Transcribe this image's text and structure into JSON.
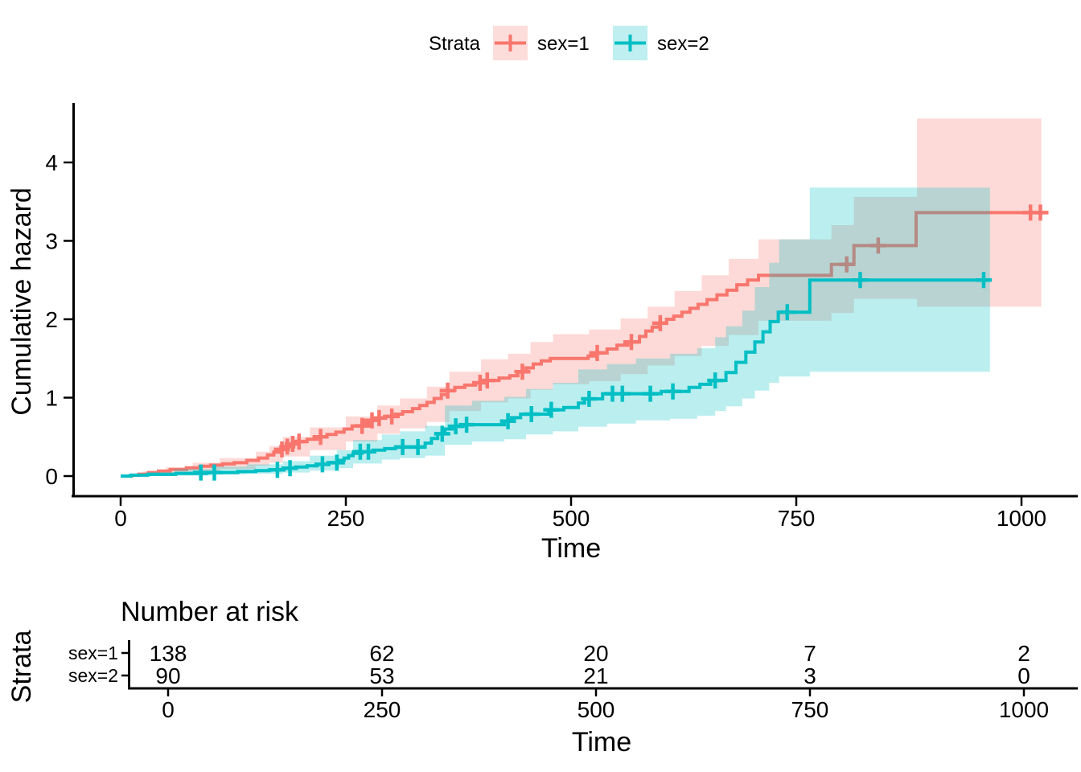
{
  "accent_colors": {
    "stratum1": "#F8766D",
    "stratum2": "#00BFC4",
    "axis": "#000000"
  },
  "legend": {
    "title": "Strata"
  },
  "chart_data": [
    {
      "type": "line",
      "subtype": "step-cumulative-hazard-with-confidence-bands",
      "title": "",
      "xlabel": "Time",
      "ylabel": "Cumulative hazard",
      "xticks": [
        0,
        250,
        500,
        750,
        1000
      ],
      "yticks": [
        0,
        1,
        2,
        3,
        4
      ],
      "xlim": [
        -55,
        1060
      ],
      "ylim": [
        0,
        4.6
      ],
      "grid": false,
      "legend_position": "top",
      "legend_title": "Strata",
      "series": [
        {
          "name": "sex=1",
          "color": "#F8766D",
          "end_time": 1022,
          "points": [
            [
              0,
              0
            ],
            [
              12,
              0.01
            ],
            [
              20,
              0.025
            ],
            [
              31,
              0.045
            ],
            [
              42,
              0.065
            ],
            [
              55,
              0.085
            ],
            [
              73,
              0.105
            ],
            [
              88,
              0.125
            ],
            [
              100,
              0.14
            ],
            [
              113,
              0.155
            ],
            [
              126,
              0.17
            ],
            [
              140,
              0.2
            ],
            [
              153,
              0.23
            ],
            [
              163,
              0.27
            ],
            [
              170,
              0.305
            ],
            [
              177,
              0.34
            ],
            [
              183,
              0.375
            ],
            [
              189,
              0.41
            ],
            [
              197,
              0.44
            ],
            [
              207,
              0.47
            ],
            [
              218,
              0.5
            ],
            [
              229,
              0.53
            ],
            [
              239,
              0.56
            ],
            [
              248,
              0.6
            ],
            [
              257,
              0.64
            ],
            [
              269,
              0.67
            ],
            [
              278,
              0.71
            ],
            [
              284,
              0.74
            ],
            [
              293,
              0.76
            ],
            [
              305,
              0.79
            ],
            [
              313,
              0.82
            ],
            [
              324,
              0.86
            ],
            [
              332,
              0.9
            ],
            [
              340,
              0.94
            ],
            [
              348,
              0.99
            ],
            [
              356,
              1.04
            ],
            [
              363,
              1.09
            ],
            [
              371,
              1.13
            ],
            [
              382,
              1.16
            ],
            [
              394,
              1.19
            ],
            [
              404,
              1.22
            ],
            [
              420,
              1.25
            ],
            [
              432,
              1.28
            ],
            [
              441,
              1.33
            ],
            [
              450,
              1.38
            ],
            [
              458,
              1.43
            ],
            [
              467,
              1.47
            ],
            [
              477,
              1.5
            ],
            [
              519,
              1.53
            ],
            [
              528,
              1.57
            ],
            [
              540,
              1.62
            ],
            [
              551,
              1.67
            ],
            [
              563,
              1.71
            ],
            [
              576,
              1.78
            ],
            [
              583,
              1.85
            ],
            [
              590,
              1.9
            ],
            [
              598,
              1.95
            ],
            [
              606,
              2.0
            ],
            [
              614,
              2.04
            ],
            [
              623,
              2.09
            ],
            [
              632,
              2.14
            ],
            [
              641,
              2.19
            ],
            [
              651,
              2.25
            ],
            [
              662,
              2.31
            ],
            [
              673,
              2.37
            ],
            [
              684,
              2.44
            ],
            [
              696,
              2.5
            ],
            [
              708,
              2.56
            ],
            [
              789,
              2.7
            ],
            [
              814,
              2.94
            ],
            [
              883,
              3.36
            ]
          ],
          "censors": [
            [
              179,
              0.34
            ],
            [
              185,
              0.375
            ],
            [
              191,
              0.41
            ],
            [
              198,
              0.44
            ],
            [
              222,
              0.5
            ],
            [
              268,
              0.64
            ],
            [
              279,
              0.71
            ],
            [
              287,
              0.74
            ],
            [
              301,
              0.76
            ],
            [
              363,
              1.09
            ],
            [
              399,
              1.19
            ],
            [
              407,
              1.22
            ],
            [
              446,
              1.33
            ],
            [
              529,
              1.57
            ],
            [
              567,
              1.71
            ],
            [
              599,
              1.95
            ],
            [
              806,
              2.7
            ],
            [
              841,
              2.94
            ],
            [
              1010,
              3.36
            ],
            [
              1021,
              3.36
            ]
          ],
          "band": [
            [
              0,
              0,
              0.02
            ],
            [
              25,
              0,
              0.06
            ],
            [
              50,
              0.02,
              0.11
            ],
            [
              80,
              0.05,
              0.17
            ],
            [
              110,
              0.09,
              0.23
            ],
            [
              150,
              0.13,
              0.31
            ],
            [
              165,
              0.17,
              0.38
            ],
            [
              180,
              0.25,
              0.5
            ],
            [
              210,
              0.33,
              0.62
            ],
            [
              250,
              0.44,
              0.76
            ],
            [
              285,
              0.54,
              0.9
            ],
            [
              310,
              0.61,
              0.99
            ],
            [
              340,
              0.69,
              1.14
            ],
            [
              365,
              0.83,
              1.33
            ],
            [
              400,
              0.94,
              1.49
            ],
            [
              430,
              0.99,
              1.56
            ],
            [
              455,
              1.1,
              1.71
            ],
            [
              480,
              1.17,
              1.81
            ],
            [
              520,
              1.21,
              1.87
            ],
            [
              555,
              1.3,
              2.01
            ],
            [
              585,
              1.41,
              2.16
            ],
            [
              615,
              1.53,
              2.36
            ],
            [
              645,
              1.66,
              2.56
            ],
            [
              675,
              1.8,
              2.77
            ],
            [
              708,
              1.98,
              3.02
            ],
            [
              789,
              2.08,
              3.2
            ],
            [
              814,
              2.26,
              3.56
            ],
            [
              884,
              2.16,
              4.56
            ],
            [
              1022,
              2.16,
              4.56
            ]
          ]
        },
        {
          "name": "sex=2",
          "color": "#00BFC4",
          "end_time": 965,
          "points": [
            [
              0,
              0
            ],
            [
              11,
              0.011
            ],
            [
              30,
              0.022
            ],
            [
              61,
              0.034
            ],
            [
              95,
              0.045
            ],
            [
              130,
              0.057
            ],
            [
              150,
              0.07
            ],
            [
              165,
              0.08
            ],
            [
              180,
              0.1
            ],
            [
              194,
              0.115
            ],
            [
              207,
              0.13
            ],
            [
              218,
              0.15
            ],
            [
              230,
              0.17
            ],
            [
              242,
              0.2
            ],
            [
              248,
              0.23
            ],
            [
              253,
              0.26
            ],
            [
              258,
              0.29
            ],
            [
              268,
              0.31
            ],
            [
              280,
              0.33
            ],
            [
              293,
              0.35
            ],
            [
              305,
              0.37
            ],
            [
              338,
              0.42
            ],
            [
              345,
              0.48
            ],
            [
              352,
              0.54
            ],
            [
              360,
              0.6
            ],
            [
              368,
              0.635
            ],
            [
              380,
              0.655
            ],
            [
              426,
              0.7
            ],
            [
              434,
              0.745
            ],
            [
              444,
              0.79
            ],
            [
              475,
              0.845
            ],
            [
              492,
              0.875
            ],
            [
              508,
              0.93
            ],
            [
              515,
              0.985
            ],
            [
              535,
              1.05
            ],
            [
              600,
              1.08
            ],
            [
              631,
              1.13
            ],
            [
              643,
              1.17
            ],
            [
              655,
              1.22
            ],
            [
              672,
              1.32
            ],
            [
              683,
              1.45
            ],
            [
              694,
              1.58
            ],
            [
              704,
              1.71
            ],
            [
              713,
              1.84
            ],
            [
              721,
              1.97
            ],
            [
              730,
              2.09
            ],
            [
              765,
              2.5
            ]
          ],
          "censors": [
            [
              89,
              0.045
            ],
            [
              104,
              0.045
            ],
            [
              174,
              0.08
            ],
            [
              188,
              0.1
            ],
            [
              224,
              0.15
            ],
            [
              240,
              0.17
            ],
            [
              266,
              0.31
            ],
            [
              275,
              0.31
            ],
            [
              313,
              0.37
            ],
            [
              330,
              0.37
            ],
            [
              357,
              0.54
            ],
            [
              372,
              0.635
            ],
            [
              384,
              0.655
            ],
            [
              430,
              0.7
            ],
            [
              456,
              0.79
            ],
            [
              478,
              0.845
            ],
            [
              520,
              0.985
            ],
            [
              546,
              1.05
            ],
            [
              557,
              1.05
            ],
            [
              588,
              1.05
            ],
            [
              613,
              1.08
            ],
            [
              660,
              1.22
            ],
            [
              740,
              2.09
            ],
            [
              821,
              2.5
            ],
            [
              958,
              2.5
            ]
          ],
          "band": [
            [
              0,
              0,
              0.02
            ],
            [
              30,
              0,
              0.05
            ],
            [
              60,
              0.005,
              0.09
            ],
            [
              100,
              0.02,
              0.12
            ],
            [
              140,
              0.03,
              0.15
            ],
            [
              180,
              0.045,
              0.19
            ],
            [
              210,
              0.07,
              0.26
            ],
            [
              240,
              0.1,
              0.33
            ],
            [
              258,
              0.16,
              0.46
            ],
            [
              290,
              0.21,
              0.53
            ],
            [
              310,
              0.23,
              0.57
            ],
            [
              338,
              0.26,
              0.64
            ],
            [
              360,
              0.4,
              0.9
            ],
            [
              390,
              0.44,
              0.96
            ],
            [
              426,
              0.47,
              1.01
            ],
            [
              450,
              0.53,
              1.11
            ],
            [
              480,
              0.57,
              1.19
            ],
            [
              508,
              0.63,
              1.36
            ],
            [
              540,
              0.67,
              1.43
            ],
            [
              572,
              0.71,
              1.5
            ],
            [
              610,
              0.73,
              1.56
            ],
            [
              640,
              0.77,
              1.63
            ],
            [
              660,
              0.83,
              1.77
            ],
            [
              672,
              0.89,
              1.91
            ],
            [
              690,
              0.99,
              2.11
            ],
            [
              704,
              1.09,
              2.41
            ],
            [
              720,
              1.19,
              2.72
            ],
            [
              731,
              1.27,
              3.02
            ],
            [
              765,
              1.33,
              3.68
            ],
            [
              965,
              1.33,
              3.68
            ]
          ]
        }
      ]
    },
    {
      "type": "table",
      "title": "Number at risk",
      "ylabel": "Strata",
      "xlabel": "Time",
      "xticks": [
        0,
        250,
        500,
        750,
        1000
      ],
      "rows": [
        {
          "label": "sex=1",
          "color": "#F8766D",
          "counts": [
            "138",
            "62",
            "20",
            "7",
            "2"
          ]
        },
        {
          "label": "sex=2",
          "color": "#00BFC4",
          "counts": [
            "90",
            "53",
            "21",
            "3",
            "0"
          ]
        }
      ]
    }
  ]
}
